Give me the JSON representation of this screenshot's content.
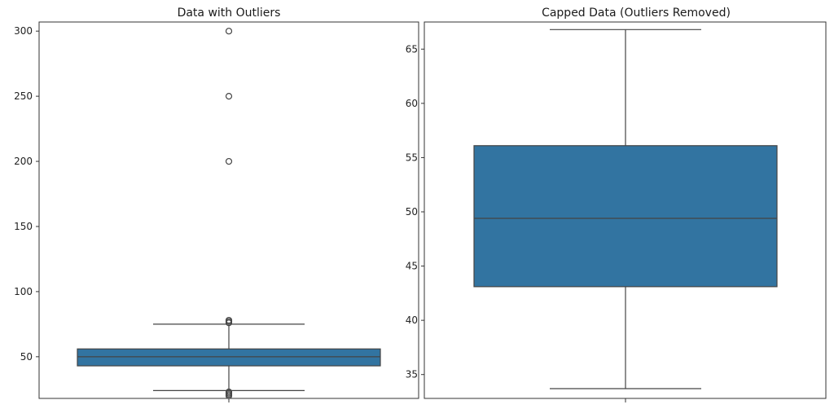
{
  "chart_data": [
    {
      "type": "box",
      "title": "Data with Outliers",
      "xlabel": "",
      "ylabel": "",
      "ylim": [
        18,
        307
      ],
      "yticks": [
        50,
        100,
        150,
        200,
        250,
        300
      ],
      "box_color": "#3274a1",
      "line_color": "#444444",
      "whisker_low": 24,
      "q1": 43,
      "median": 50,
      "q3": 56,
      "whisker_high": 75,
      "outliers": [
        300,
        250,
        200,
        78,
        77,
        76,
        23,
        22,
        21,
        20
      ]
    },
    {
      "type": "box",
      "title": "Capped Data (Outliers Removed)",
      "xlabel": "",
      "ylabel": "",
      "ylim": [
        32.8,
        67.5
      ],
      "yticks": [
        35,
        40,
        45,
        50,
        55,
        60,
        65
      ],
      "box_color": "#3274a1",
      "line_color": "#444444",
      "whisker_low": 33.7,
      "q1": 43.1,
      "median": 49.4,
      "q3": 56.1,
      "whisker_high": 66.8,
      "outliers": []
    }
  ]
}
